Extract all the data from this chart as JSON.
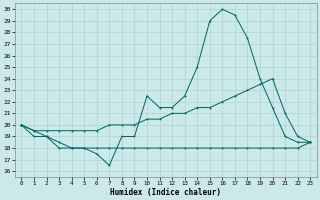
{
  "xlabel": "Humidex (Indice chaleur)",
  "xlim": [
    -0.5,
    23.5
  ],
  "ylim": [
    15.5,
    30.5
  ],
  "yticks": [
    16,
    17,
    18,
    19,
    20,
    21,
    22,
    23,
    24,
    25,
    26,
    27,
    28,
    29,
    30
  ],
  "xticks": [
    0,
    1,
    2,
    3,
    4,
    5,
    6,
    7,
    8,
    9,
    10,
    11,
    12,
    13,
    14,
    15,
    16,
    17,
    18,
    19,
    20,
    21,
    22,
    23
  ],
  "background_color": "#cce9e9",
  "grid_color": "#aad4d4",
  "line_color": "#006060",
  "line1_x": [
    0,
    1,
    2,
    3,
    4,
    5,
    6,
    7,
    8,
    9,
    10,
    11,
    12,
    13,
    14,
    15,
    16,
    17,
    18,
    19,
    20,
    21,
    22,
    23
  ],
  "line1_y": [
    20.0,
    19.0,
    19.0,
    18.0,
    18.0,
    18.0,
    17.5,
    16.5,
    19.0,
    19.0,
    22.5,
    21.5,
    21.5,
    22.5,
    25.0,
    29.0,
    30.0,
    29.5,
    27.5,
    24.0,
    21.5,
    19.0,
    18.5,
    18.5
  ],
  "line2_x": [
    0,
    1,
    2,
    3,
    4,
    5,
    6,
    7,
    8,
    9,
    10,
    11,
    12,
    13,
    14,
    15,
    16,
    17,
    18,
    19,
    20,
    21,
    22,
    23
  ],
  "line2_y": [
    20.0,
    19.5,
    19.5,
    19.5,
    19.5,
    19.5,
    19.5,
    20.0,
    20.0,
    20.0,
    20.5,
    20.5,
    21.0,
    21.0,
    21.5,
    21.5,
    22.0,
    22.5,
    23.0,
    23.5,
    24.0,
    21.0,
    19.0,
    18.5
  ],
  "line3_x": [
    0,
    1,
    2,
    3,
    4,
    5,
    6,
    7,
    8,
    9,
    10,
    11,
    12,
    13,
    14,
    15,
    16,
    17,
    18,
    19,
    20,
    21,
    22,
    23
  ],
  "line3_y": [
    20.0,
    19.5,
    19.0,
    18.5,
    18.0,
    18.0,
    18.0,
    18.0,
    18.0,
    18.0,
    18.0,
    18.0,
    18.0,
    18.0,
    18.0,
    18.0,
    18.0,
    18.0,
    18.0,
    18.0,
    18.0,
    18.0,
    18.0,
    18.5
  ]
}
